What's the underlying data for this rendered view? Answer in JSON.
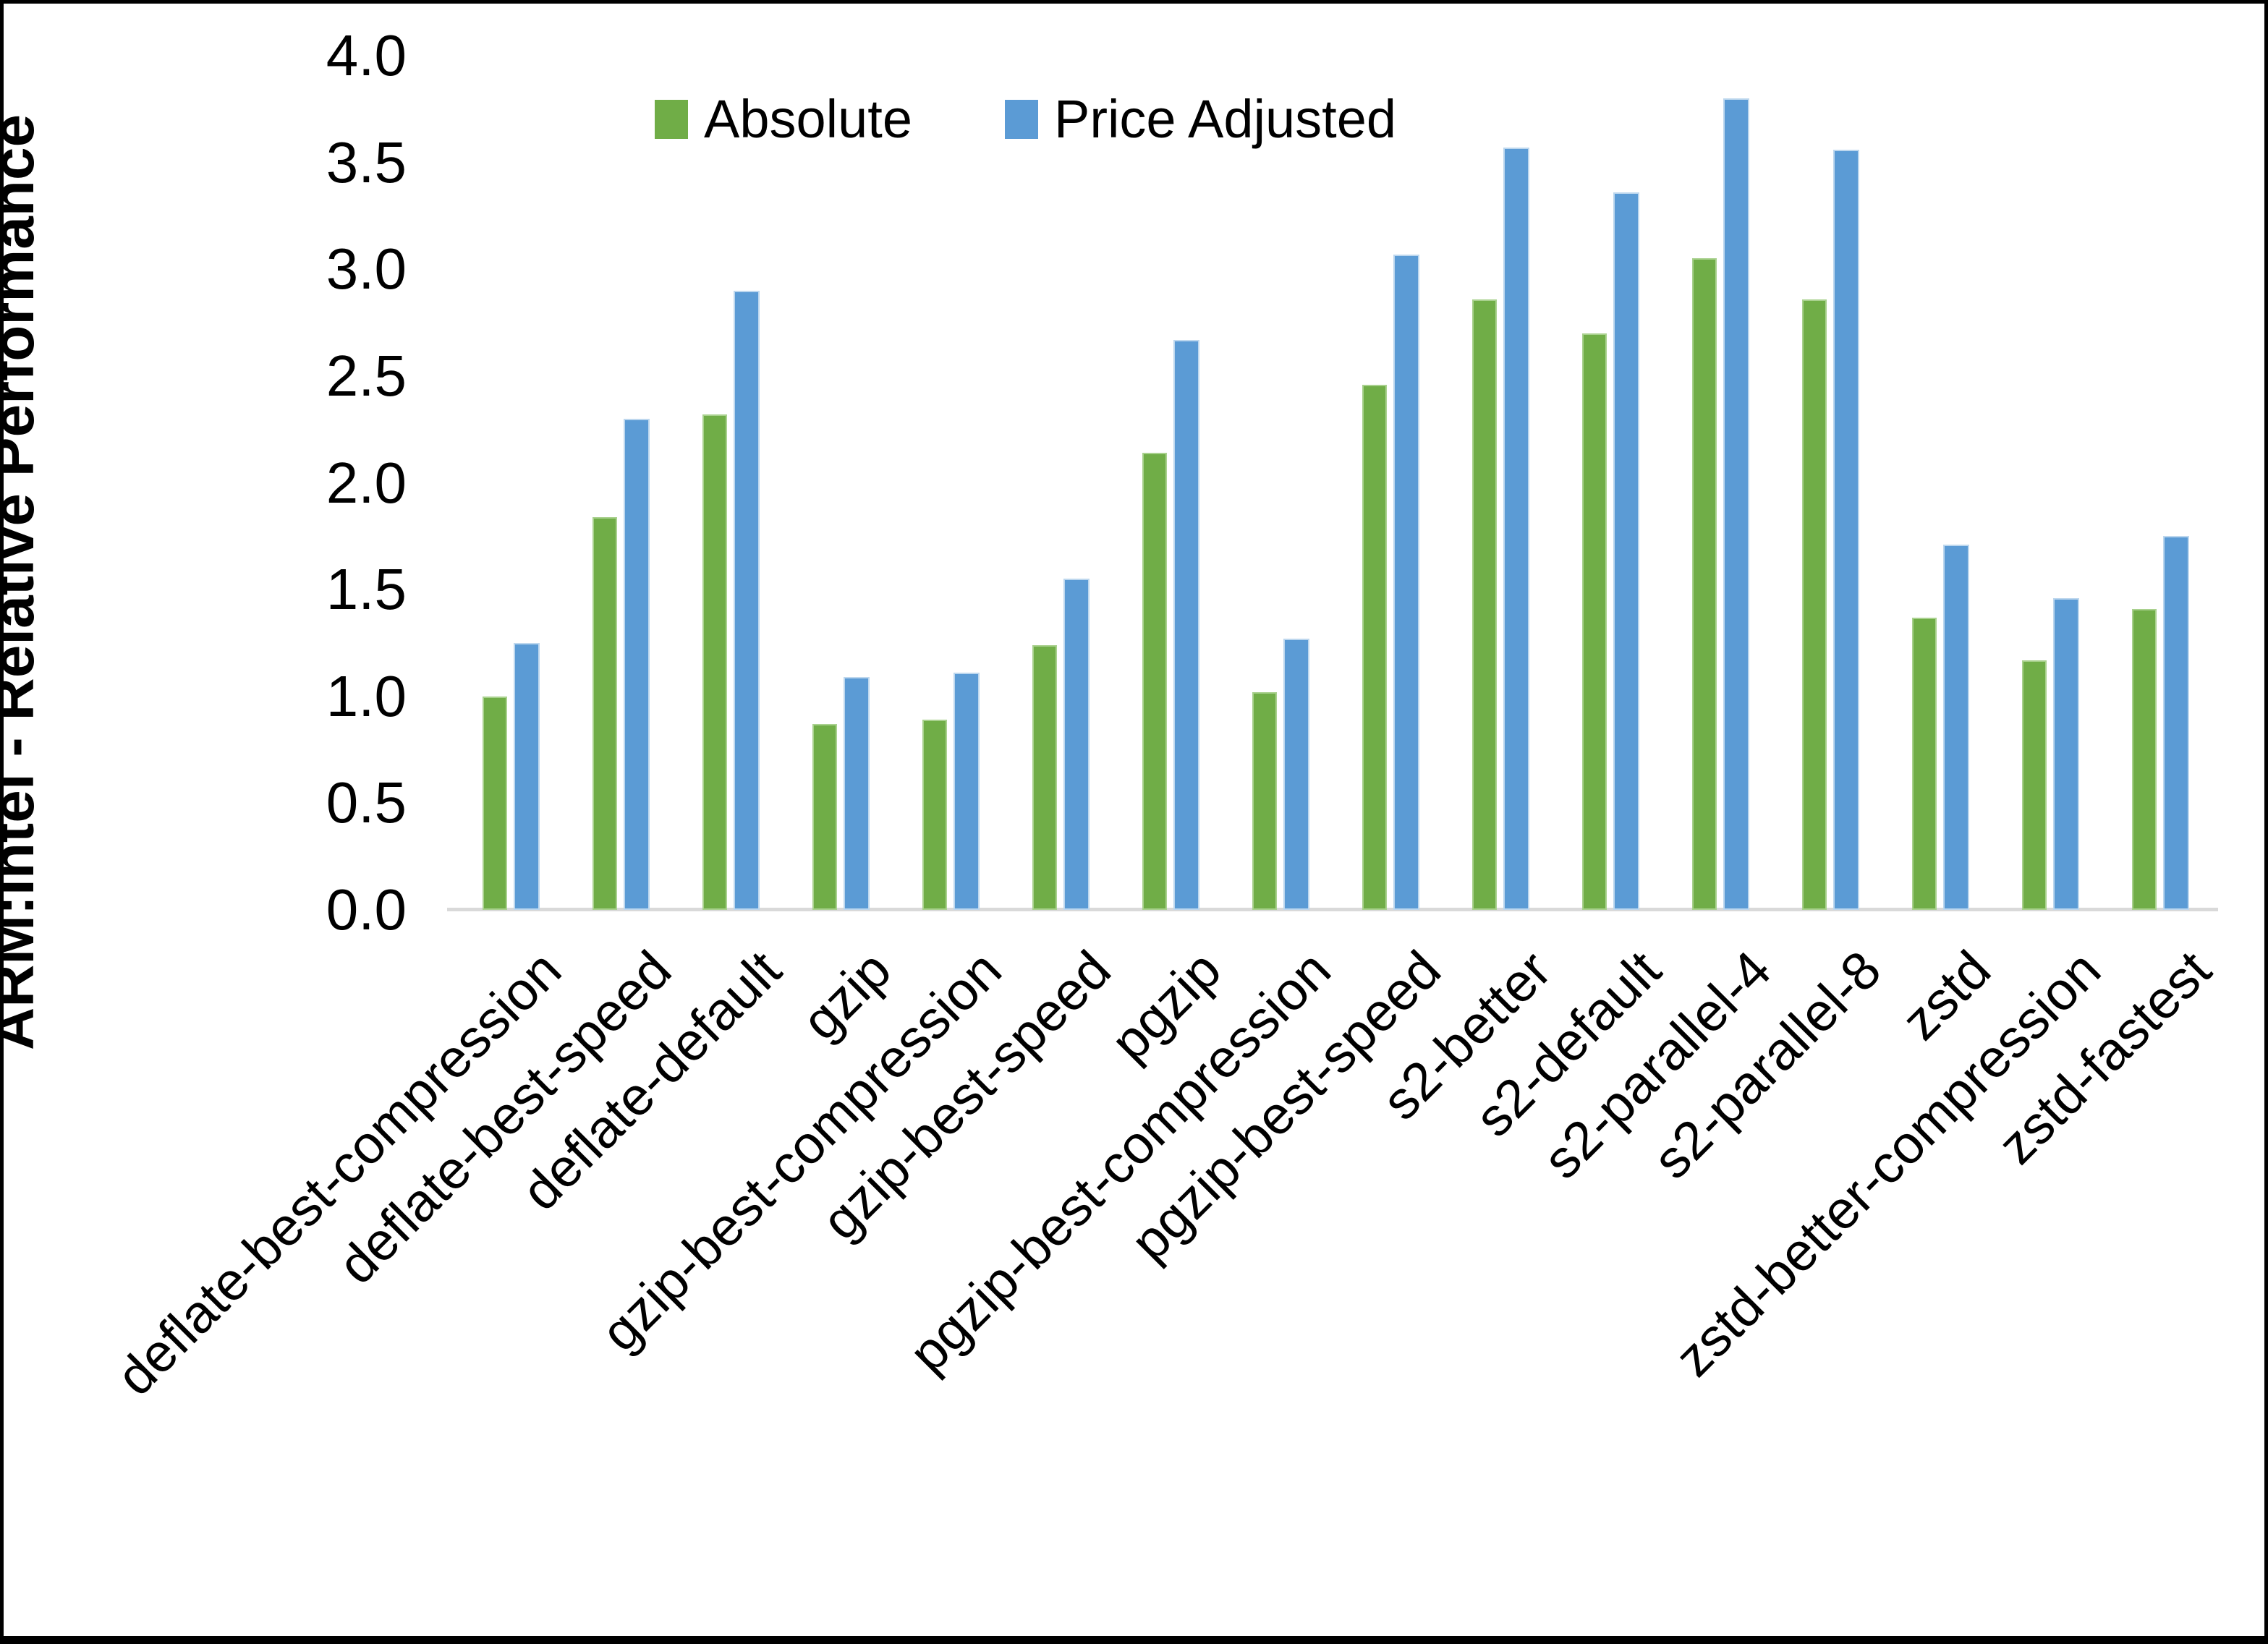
{
  "chart_data": {
    "type": "bar",
    "title": "",
    "ylabel": "ARM:Intel - Relative Performance",
    "xlabel": "",
    "ylim": [
      0.0,
      4.0
    ],
    "ytick_labels": [
      "4.0",
      "3.5",
      "3.0",
      "2.5",
      "2.0",
      "1.5",
      "1.0",
      "0.5",
      "0.0"
    ],
    "grid": false,
    "legend_position": "top-center",
    "axis_line_color": "#D9D9D9",
    "categories": [
      "deflate-best-compression",
      "deflate-best-speed",
      "deflate-default",
      "gzip",
      "gzip-best-compression",
      "gzip-best-speed",
      "pgzip",
      "pgzip-best-compression",
      "pgzip-best-speed",
      "s2-better",
      "s2-default",
      "s2-parallel-4",
      "s2-parallel-8",
      "zstd",
      "zstd-better-compression",
      "zstd-fastest"
    ],
    "series": [
      {
        "name": "Absolute",
        "color": "#70AD47",
        "edge_color": "#A9D18E",
        "values": [
          1.0,
          1.84,
          2.32,
          0.87,
          0.89,
          1.24,
          2.14,
          1.02,
          2.46,
          2.86,
          2.7,
          3.05,
          2.86,
          1.37,
          1.17,
          1.41
        ]
      },
      {
        "name": "Price Adjusted",
        "color": "#5B9BD5",
        "edge_color": "#BDD7EE",
        "values": [
          1.25,
          2.3,
          2.9,
          1.09,
          1.11,
          1.55,
          2.67,
          1.27,
          3.07,
          3.57,
          3.36,
          3.8,
          3.56,
          1.71,
          1.46,
          1.75
        ]
      }
    ]
  },
  "frame": {
    "border_color": "#000000"
  }
}
